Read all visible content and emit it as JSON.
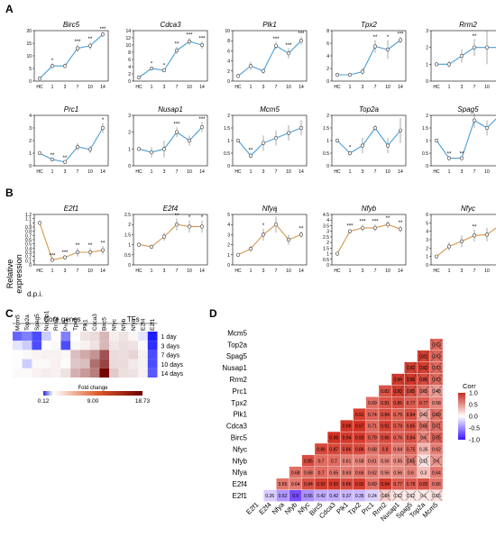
{
  "panel_labels": {
    "a": "A",
    "b": "B",
    "c": "C",
    "d": "D"
  },
  "x_labels": [
    "HC",
    "1",
    "3",
    "7",
    "10",
    "14"
  ],
  "dpi_label": "d.p.i.",
  "relative_label": [
    "Relative",
    "expression"
  ],
  "colors": {
    "blue_line": "#4a9fd8",
    "orange_line": "#d7954b"
  },
  "chart_data": [
    {
      "type": "line",
      "gene": "Birc5",
      "ylim": [
        0,
        20
      ],
      "yticks": [
        "0",
        "5",
        "10",
        "15",
        "20"
      ],
      "values": [
        1,
        6,
        6,
        13,
        14,
        18.5
      ],
      "err": [
        0,
        1,
        1,
        1.5,
        1.5,
        1
      ],
      "stars": [
        "",
        "*",
        "",
        "***",
        "**",
        "***"
      ]
    },
    {
      "type": "line",
      "gene": "Cdca3",
      "ylim": [
        0,
        14
      ],
      "yticks": [
        "0",
        "2",
        "4",
        "6",
        "8",
        "10",
        "12",
        "14"
      ],
      "values": [
        1,
        3.5,
        3,
        8.5,
        11,
        10
      ],
      "err": [
        0,
        0.5,
        0.5,
        1,
        1,
        1
      ],
      "stars": [
        "",
        "*",
        "*",
        "**",
        "***",
        "***"
      ]
    },
    {
      "type": "line",
      "gene": "Plk1",
      "ylim": [
        0,
        10
      ],
      "yticks": [
        "0",
        "2",
        "4",
        "6",
        "8",
        "10"
      ],
      "values": [
        1,
        3,
        2,
        7,
        5.5,
        8
      ],
      "err": [
        0,
        0.8,
        0.5,
        0.8,
        1,
        0.8
      ],
      "stars": [
        "",
        "",
        "",
        "***",
        "***",
        "***"
      ]
    },
    {
      "type": "line",
      "gene": "Tpx2",
      "ylim": [
        0,
        8
      ],
      "yticks": [
        "0",
        "2",
        "4",
        "6",
        "8"
      ],
      "values": [
        1,
        1,
        1.5,
        5.5,
        5,
        6.5
      ],
      "err": [
        0,
        0.3,
        0.5,
        1,
        1.5,
        0.5
      ],
      "stars": [
        "",
        "",
        "",
        "**",
        "*",
        "***"
      ]
    },
    {
      "type": "line",
      "gene": "Rrm2",
      "ylim": [
        0,
        3
      ],
      "yticks": [
        "0",
        "1",
        "2",
        "3"
      ],
      "values": [
        1,
        1,
        1.5,
        2,
        2,
        2
      ],
      "err": [
        0,
        0.2,
        0.4,
        0.5,
        1,
        0.7
      ],
      "stars": [
        "",
        "",
        "",
        "**",
        "",
        "*"
      ]
    },
    {
      "type": "line",
      "gene": "Prc1",
      "ylim": [
        0,
        4
      ],
      "yticks": [
        "0",
        "1",
        "2",
        "3",
        "4"
      ],
      "values": [
        1,
        0.5,
        0.3,
        1.5,
        1.3,
        3
      ],
      "err": [
        0,
        0.1,
        0.1,
        0.3,
        0.3,
        0.4
      ],
      "stars": [
        "",
        "**",
        "**",
        "",
        "",
        "*"
      ]
    },
    {
      "type": "line",
      "gene": "Nusap1",
      "ylim": [
        0,
        3
      ],
      "yticks": [
        "0",
        "1",
        "2",
        "3"
      ],
      "values": [
        1,
        0.8,
        1,
        2,
        1.5,
        2.3
      ],
      "err": [
        0,
        0.3,
        0.5,
        0.3,
        0.3,
        0.3
      ],
      "stars": [
        "",
        "",
        "",
        "***",
        "",
        "***"
      ]
    },
    {
      "type": "line",
      "gene": "Mcm5",
      "ylim": [
        0,
        2
      ],
      "yticks": [
        "0",
        "0.5",
        "1",
        "1.5",
        "2"
      ],
      "values": [
        1,
        0.4,
        0.9,
        1.1,
        1.3,
        1.5
      ],
      "err": [
        0,
        0.1,
        0.3,
        0.3,
        0.3,
        0.3
      ],
      "stars": [
        "",
        "**",
        "",
        "",
        "",
        ""
      ]
    },
    {
      "type": "line",
      "gene": "Top2a",
      "ylim": [
        0,
        2
      ],
      "yticks": [
        "0",
        "0.5",
        "1",
        "1.5",
        "2"
      ],
      "values": [
        1,
        0.5,
        0.8,
        1.5,
        0.8,
        1.4
      ],
      "err": [
        0,
        0.1,
        0.3,
        0.1,
        0.3,
        0.5
      ],
      "stars": [
        "",
        "*",
        "",
        "",
        "",
        ""
      ]
    },
    {
      "type": "line",
      "gene": "Spag5",
      "ylim": [
        0,
        2
      ],
      "yticks": [
        "0",
        "0.5",
        "1",
        "1.5",
        "2"
      ],
      "values": [
        1,
        0.3,
        0.3,
        1.8,
        1.5,
        2
      ],
      "err": [
        0,
        0.05,
        0.05,
        0.3,
        0.3,
        0.4
      ],
      "stars": [
        "",
        "**",
        "**",
        "",
        "",
        ""
      ]
    },
    {
      "type": "line",
      "gene": "E2f1",
      "ylim": [
        0,
        1.2
      ],
      "yticks": [
        "0",
        "0.1",
        "0.2",
        "0.3",
        "0.4",
        "0.5",
        "0.6",
        "0.7",
        "0.8",
        "0.9",
        "1",
        "1.1",
        "1.2"
      ],
      "values": [
        1,
        0.12,
        0.18,
        0.3,
        0.3,
        0.35
      ],
      "err": [
        0,
        0.03,
        0.05,
        0.1,
        0.1,
        0.1
      ],
      "stars": [
        "",
        "***",
        "***",
        "**",
        "**",
        "**"
      ]
    },
    {
      "type": "line",
      "gene": "E2f4",
      "ylim": [
        0,
        2.5
      ],
      "yticks": [
        "0",
        "0.5",
        "1",
        "1.5",
        "2",
        "2.5"
      ],
      "values": [
        1,
        0.9,
        1.4,
        2,
        1.9,
        1.9
      ],
      "err": [
        0,
        0.1,
        0.2,
        0.3,
        0.3,
        0.3
      ],
      "stars": [
        "",
        "",
        "",
        "**",
        "*",
        "*"
      ]
    },
    {
      "type": "line",
      "gene": "Nfya",
      "ylim": [
        0,
        5
      ],
      "yticks": [
        "0",
        "1",
        "2",
        "3",
        "4",
        "5"
      ],
      "values": [
        1,
        1.6,
        3,
        4,
        2.5,
        3
      ],
      "err": [
        0,
        0.3,
        0.6,
        0.8,
        0.5,
        0.3
      ],
      "stars": [
        "",
        "",
        "*",
        "*",
        "",
        "**"
      ]
    },
    {
      "type": "line",
      "gene": "Nfyb",
      "ylim": [
        0,
        4.5
      ],
      "yticks": [
        "0",
        "0.5",
        "1",
        "1.5",
        "2",
        "2.5",
        "3",
        "3.5",
        "4",
        "4.5"
      ],
      "values": [
        1,
        3,
        3.3,
        3.3,
        3.6,
        3.2
      ],
      "err": [
        0,
        0.2,
        0.3,
        0.3,
        0.3,
        0.3
      ],
      "stars": [
        "",
        "***",
        "***",
        "***",
        "**",
        "**"
      ]
    },
    {
      "type": "line",
      "gene": "Nfyc",
      "ylim": [
        0,
        6
      ],
      "yticks": [
        "0",
        "1",
        "2",
        "3",
        "4",
        "5",
        "6"
      ],
      "values": [
        1,
        2.2,
        2.8,
        3.5,
        3.6,
        4.7
      ],
      "err": [
        0,
        0.5,
        0.7,
        0.7,
        0.8,
        1.2
      ],
      "stars": [
        "",
        "",
        "",
        "**",
        "",
        "*"
      ]
    },
    {
      "type": "heatmap",
      "core_label": "Core genes",
      "tf_label": "TFs",
      "columns": [
        "Mcm5",
        "Top2a",
        "Spag5",
        "Nusap1",
        "Rrm2",
        "Prc1",
        "Tpx2",
        "Plk1",
        "Cdca3",
        "Birc5",
        "Nfyc",
        "Nfyb",
        "Nfya",
        "E2f4",
        "E2f1"
      ],
      "rows": [
        "1 day",
        "3 days",
        "7 days",
        "10 days",
        "14 days"
      ],
      "values": [
        [
          0.4,
          0.5,
          0.3,
          0.8,
          1.0,
          0.5,
          1.0,
          3.0,
          3.5,
          6.0,
          2.2,
          3.0,
          1.6,
          0.9,
          0.12
        ],
        [
          0.9,
          0.8,
          0.3,
          1.0,
          1.5,
          0.3,
          1.5,
          2.0,
          3.0,
          6.0,
          2.8,
          3.3,
          3.0,
          1.4,
          0.18
        ],
        [
          1.1,
          1.5,
          1.8,
          2.0,
          2.0,
          1.5,
          5.5,
          7.0,
          8.5,
          13.0,
          3.5,
          3.3,
          4.0,
          2.0,
          0.3
        ],
        [
          1.3,
          0.8,
          1.5,
          1.5,
          2.0,
          1.3,
          5.0,
          5.5,
          11.0,
          14.0,
          3.6,
          3.6,
          2.5,
          1.9,
          0.3
        ],
        [
          1.5,
          1.4,
          2.0,
          2.3,
          2.0,
          3.0,
          6.5,
          8.0,
          10.0,
          18.5,
          4.7,
          3.2,
          3.0,
          1.9,
          0.35
        ]
      ],
      "colorbar_title": "Fold change",
      "colorbar_ticks": [
        "0.12",
        "9.00",
        "18.73"
      ],
      "colorbar_range": [
        0.12,
        18.73
      ]
    },
    {
      "type": "heatmap",
      "variables": [
        "E2f1",
        "E2f4",
        "Nfya",
        "Nfyb",
        "Nfyc",
        "Birc5",
        "Cdca3",
        "Plk1",
        "Tpx2",
        "Prc1",
        "Rrm2",
        "Nusap1",
        "Spag5",
        "Top2a",
        "Mcm5"
      ],
      "matrix": [
        [
          null,
          null,
          null,
          null,
          null,
          null,
          null,
          null,
          null,
          null,
          null,
          null,
          null,
          null,
          null
        ],
        [
          "0.26",
          null,
          null,
          null,
          null,
          null,
          null,
          null,
          null,
          null,
          null,
          null,
          null,
          null,
          null
        ],
        [
          "0.52",
          "0.65",
          null,
          null,
          null,
          null,
          null,
          null,
          null,
          null,
          null,
          null,
          null,
          null,
          null
        ],
        [
          "0.9",
          "0.64",
          "0.68",
          null,
          null,
          null,
          null,
          null,
          null,
          null,
          null,
          null,
          null,
          null,
          null
        ],
        [
          "0.56",
          "0.84",
          "0.68",
          "0.85",
          null,
          null,
          null,
          null,
          null,
          null,
          null,
          null,
          null,
          null,
          null
        ],
        [
          "0.42",
          "0.92",
          "0.7",
          "0.7",
          "0.86",
          null,
          null,
          null,
          null,
          null,
          null,
          null,
          null,
          null,
          null
        ],
        [
          "0.42",
          "0.93",
          "0.65",
          "0.7",
          "0.87",
          "0.98",
          null,
          null,
          null,
          null,
          null,
          null,
          null,
          null,
          null
        ],
        [
          "0.37",
          "0.86",
          "0.63",
          "0.61",
          "0.86",
          "0.94",
          "0.96",
          null,
          null,
          null,
          null,
          null,
          null,
          null,
          null
        ],
        [
          "0.35",
          "0.92",
          "0.66",
          "0.58",
          "0.86",
          "0.93",
          "0.97",
          "0.91",
          null,
          null,
          null,
          null,
          null,
          null,
          null
        ],
        [
          "0.24",
          "0.69",
          "0.62",
          "0.61",
          "0.68",
          "0.79",
          "0.71",
          "0.74",
          "0.69",
          null,
          null,
          null,
          null,
          null,
          null
        ],
        [
          "0.24",
          "0.94",
          "0.56",
          "0.56",
          "0.8",
          "0.86",
          "0.91",
          "0.84",
          "0.81",
          "0.82",
          null,
          null,
          null,
          null,
          null
        ],
        [
          "0.12",
          "0.77",
          "0.56",
          "0.55",
          "0.64",
          "0.76",
          "0.79",
          "0.75",
          "0.85",
          "0.93",
          "0.94",
          null,
          null,
          null,
          null
        ],
        [
          "0.12",
          "0.78",
          "0.6",
          "0.65",
          "0.75",
          "0.84",
          "0.85",
          "0.84",
          "0.77",
          "0.85",
          "0.96",
          "0.92",
          null,
          null,
          null
        ],
        [
          "0.1",
          "0.82",
          "0.3",
          "0.15",
          "0.35",
          "0.6",
          "0.66",
          "0.42",
          "0.77",
          "0.65",
          "0.86",
          "0.92",
          "0.91",
          null,
          null
        ],
        [
          "0.16",
          "0.66",
          "0.64",
          "0.5",
          "0.62",
          "0.76",
          "0.71",
          "0.69",
          "0.58",
          "0.48",
          "0.73",
          "0.73",
          "0.73",
          "0.73",
          null
        ]
      ],
      "crossed": [
        [
          10,
          0
        ],
        [
          11,
          0
        ],
        [
          12,
          0
        ],
        [
          13,
          0
        ],
        [
          14,
          0
        ],
        [
          12,
          3
        ],
        [
          13,
          3
        ],
        [
          14,
          3
        ],
        [
          13,
          5
        ],
        [
          14,
          5
        ],
        [
          13,
          6
        ],
        [
          14,
          6
        ],
        [
          13,
          7
        ],
        [
          14,
          7
        ],
        [
          11,
          9
        ],
        [
          12,
          9
        ],
        [
          13,
          9
        ],
        [
          14,
          9
        ],
        [
          11,
          10
        ],
        [
          12,
          10
        ],
        [
          13,
          10
        ],
        [
          14,
          10
        ],
        [
          12,
          11
        ],
        [
          13,
          11
        ],
        [
          14,
          11
        ],
        [
          13,
          12
        ],
        [
          14,
          12
        ],
        [
          13,
          13
        ],
        [
          14,
          13
        ]
      ],
      "colorbar_title": "Corr",
      "colorbar_ticks": [
        "1.0",
        "0.5",
        "0.0",
        "-0.5",
        "-1.0"
      ],
      "colorbar_range": [
        -1,
        1
      ]
    }
  ]
}
